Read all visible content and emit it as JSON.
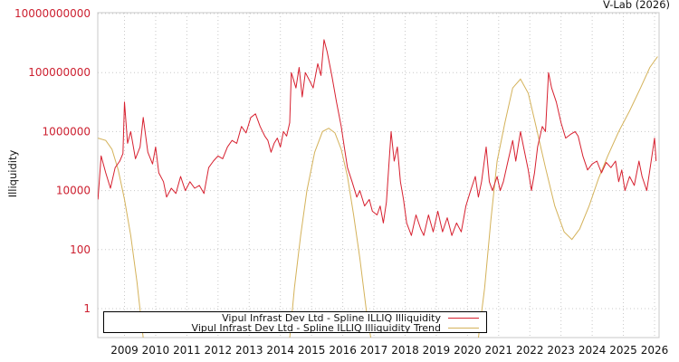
{
  "credit": "V-Lab (2026)",
  "chart_data": {
    "type": "line",
    "title": "",
    "xlabel": "",
    "ylabel": "Illiquidity",
    "yscale": "log",
    "ylim": [
      0.1,
      10000000000
    ],
    "xlim": [
      2008.15,
      2026.1
    ],
    "grid": true,
    "legend_position": "bottom-left (inside)",
    "y_ticks": [
      "10000000000",
      "100000000",
      "1000000",
      "10000",
      "100",
      "1"
    ],
    "x_ticks": [
      "2009",
      "2010",
      "2011",
      "2012",
      "2013",
      "2014",
      "2015",
      "2016",
      "2017",
      "2018",
      "2019",
      "2020",
      "2021",
      "2022",
      "2023",
      "2024",
      "2025",
      "2026"
    ],
    "series": [
      {
        "name": "Vipul Infrast Dev Ltd - Spline ILLIQ Illiquidity",
        "color": "#d7202f",
        "points": [
          [
            2008.15,
            5000
          ],
          [
            2008.25,
            150000
          ],
          [
            2008.4,
            40000
          ],
          [
            2008.55,
            12000
          ],
          [
            2008.7,
            60000
          ],
          [
            2008.85,
            100000
          ],
          [
            2008.95,
            180000
          ],
          [
            2009.0,
            10000000
          ],
          [
            2009.1,
            400000
          ],
          [
            2009.2,
            1000000
          ],
          [
            2009.35,
            120000
          ],
          [
            2009.5,
            300000
          ],
          [
            2009.6,
            3000000
          ],
          [
            2009.75,
            200000
          ],
          [
            2009.9,
            80000
          ],
          [
            2010.0,
            300000
          ],
          [
            2010.1,
            40000
          ],
          [
            2010.25,
            20000
          ],
          [
            2010.35,
            6000
          ],
          [
            2010.5,
            12000
          ],
          [
            2010.65,
            8000
          ],
          [
            2010.8,
            30000
          ],
          [
            2010.95,
            10000
          ],
          [
            2011.1,
            20000
          ],
          [
            2011.25,
            12000
          ],
          [
            2011.4,
            15000
          ],
          [
            2011.55,
            8000
          ],
          [
            2011.7,
            60000
          ],
          [
            2011.85,
            100000
          ],
          [
            2012.0,
            150000
          ],
          [
            2012.15,
            120000
          ],
          [
            2012.3,
            300000
          ],
          [
            2012.45,
            500000
          ],
          [
            2012.6,
            400000
          ],
          [
            2012.75,
            1500000
          ],
          [
            2012.9,
            900000
          ],
          [
            2013.05,
            3000000
          ],
          [
            2013.2,
            4000000
          ],
          [
            2013.35,
            1500000
          ],
          [
            2013.5,
            700000
          ],
          [
            2013.6,
            500000
          ],
          [
            2013.7,
            200000
          ],
          [
            2013.8,
            400000
          ],
          [
            2013.9,
            600000
          ],
          [
            2014.0,
            300000
          ],
          [
            2014.1,
            1000000
          ],
          [
            2014.2,
            700000
          ],
          [
            2014.3,
            2000000
          ],
          [
            2014.35,
            100000000
          ],
          [
            2014.5,
            30000000
          ],
          [
            2014.6,
            150000000
          ],
          [
            2014.7,
            15000000
          ],
          [
            2014.8,
            100000000
          ],
          [
            2014.95,
            50000000
          ],
          [
            2015.05,
            30000000
          ],
          [
            2015.2,
            200000000
          ],
          [
            2015.3,
            80000000
          ],
          [
            2015.4,
            1300000000
          ],
          [
            2015.5,
            500000000
          ],
          [
            2015.65,
            80000000
          ],
          [
            2015.8,
            10000000
          ],
          [
            2015.95,
            1500000
          ],
          [
            2016.05,
            300000
          ],
          [
            2016.15,
            60000
          ],
          [
            2016.3,
            20000
          ],
          [
            2016.45,
            6000
          ],
          [
            2016.55,
            10000
          ],
          [
            2016.7,
            3000
          ],
          [
            2016.85,
            5000
          ],
          [
            2016.95,
            2000
          ],
          [
            2017.1,
            1500
          ],
          [
            2017.2,
            3000
          ],
          [
            2017.3,
            800
          ],
          [
            2017.4,
            4000
          ],
          [
            2017.55,
            1000000
          ],
          [
            2017.65,
            100000
          ],
          [
            2017.75,
            300000
          ],
          [
            2017.85,
            20000
          ],
          [
            2017.95,
            5000
          ],
          [
            2018.05,
            800
          ],
          [
            2018.2,
            300
          ],
          [
            2018.35,
            1500
          ],
          [
            2018.5,
            500
          ],
          [
            2018.6,
            300
          ],
          [
            2018.75,
            1500
          ],
          [
            2018.9,
            400
          ],
          [
            2019.05,
            2000
          ],
          [
            2019.2,
            400
          ],
          [
            2019.35,
            1200
          ],
          [
            2019.5,
            300
          ],
          [
            2019.65,
            800
          ],
          [
            2019.8,
            400
          ],
          [
            2019.95,
            3000
          ],
          [
            2020.1,
            10000
          ],
          [
            2020.25,
            30000
          ],
          [
            2020.35,
            6000
          ],
          [
            2020.45,
            20000
          ],
          [
            2020.6,
            300000
          ],
          [
            2020.7,
            20000
          ],
          [
            2020.8,
            10000
          ],
          [
            2020.95,
            30000
          ],
          [
            2021.05,
            10000
          ],
          [
            2021.15,
            20000
          ],
          [
            2021.3,
            100000
          ],
          [
            2021.45,
            500000
          ],
          [
            2021.55,
            100000
          ],
          [
            2021.7,
            1000000
          ],
          [
            2021.8,
            300000
          ],
          [
            2021.95,
            50000
          ],
          [
            2022.05,
            10000
          ],
          [
            2022.15,
            40000
          ],
          [
            2022.25,
            300000
          ],
          [
            2022.4,
            1500000
          ],
          [
            2022.5,
            1000000
          ],
          [
            2022.6,
            100000000
          ],
          [
            2022.7,
            30000000
          ],
          [
            2022.85,
            10000000
          ],
          [
            2023.0,
            2000000
          ],
          [
            2023.15,
            600000
          ],
          [
            2023.3,
            800000
          ],
          [
            2023.45,
            1000000
          ],
          [
            2023.55,
            700000
          ],
          [
            2023.7,
            150000
          ],
          [
            2023.85,
            50000
          ],
          [
            2024.0,
            80000
          ],
          [
            2024.15,
            100000
          ],
          [
            2024.3,
            40000
          ],
          [
            2024.45,
            90000
          ],
          [
            2024.6,
            60000
          ],
          [
            2024.75,
            100000
          ],
          [
            2024.85,
            20000
          ],
          [
            2024.95,
            50000
          ],
          [
            2025.05,
            10000
          ],
          [
            2025.2,
            30000
          ],
          [
            2025.35,
            15000
          ],
          [
            2025.5,
            100000
          ],
          [
            2025.6,
            30000
          ],
          [
            2025.75,
            10000
          ],
          [
            2025.85,
            50000
          ],
          [
            2026.0,
            600000
          ],
          [
            2026.05,
            100000
          ]
        ]
      },
      {
        "name": "Vipul Infrast Dev Ltd - Spline ILLIQ Illiquidity Trend",
        "color": "#d4b25a",
        "points": [
          [
            2008.15,
            600000
          ],
          [
            2008.4,
            500000
          ],
          [
            2008.6,
            250000
          ],
          [
            2008.8,
            50000
          ],
          [
            2009.0,
            5000
          ],
          [
            2009.2,
            300
          ],
          [
            2009.4,
            8
          ],
          [
            2009.6,
            0.1
          ],
          [
            2014.3,
            0.1
          ],
          [
            2014.45,
            5
          ],
          [
            2014.65,
            300
          ],
          [
            2014.85,
            10000
          ],
          [
            2015.1,
            200000
          ],
          [
            2015.35,
            1000000
          ],
          [
            2015.55,
            1300000
          ],
          [
            2015.75,
            900000
          ],
          [
            2015.95,
            250000
          ],
          [
            2016.15,
            30000
          ],
          [
            2016.35,
            1500
          ],
          [
            2016.55,
            50
          ],
          [
            2016.75,
            1
          ],
          [
            2016.9,
            0.1
          ],
          [
            2020.35,
            0.1
          ],
          [
            2020.55,
            5
          ],
          [
            2020.75,
            1000
          ],
          [
            2020.95,
            100000
          ],
          [
            2021.2,
            2000000
          ],
          [
            2021.45,
            30000000
          ],
          [
            2021.7,
            60000000
          ],
          [
            2021.95,
            20000000
          ],
          [
            2022.2,
            1500000
          ],
          [
            2022.5,
            60000
          ],
          [
            2022.8,
            3000
          ],
          [
            2023.1,
            400
          ],
          [
            2023.35,
            220
          ],
          [
            2023.6,
            500
          ],
          [
            2023.9,
            3000
          ],
          [
            2024.2,
            25000
          ],
          [
            2024.5,
            150000
          ],
          [
            2024.85,
            1000000
          ],
          [
            2025.2,
            5000000
          ],
          [
            2025.55,
            30000000
          ],
          [
            2025.85,
            150000000
          ],
          [
            2026.1,
            350000000
          ]
        ]
      }
    ]
  },
  "legend": {
    "items": [
      {
        "label": "Vipul Infrast Dev Ltd - Spline ILLIQ Illiquidity",
        "color": "#d7202f"
      },
      {
        "label": "Vipul Infrast Dev Ltd - Spline ILLIQ Illiquidity Trend",
        "color": "#d4b25a"
      }
    ]
  }
}
